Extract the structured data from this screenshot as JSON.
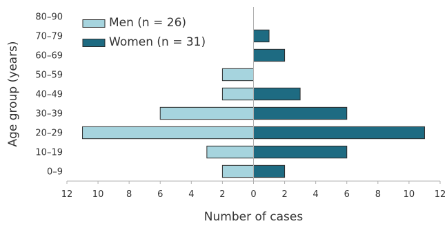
{
  "chart_data": {
    "type": "bar",
    "orientation": "horizontal-population-pyramid",
    "categories": [
      "0–9",
      "10–19",
      "20–29",
      "30–39",
      "40–49",
      "50–59",
      "60–69",
      "70–79",
      "80–90"
    ],
    "series": [
      {
        "name": "Men (n = 26)",
        "values": [
          2,
          3,
          11,
          6,
          2,
          2,
          0,
          0,
          0
        ],
        "color": "#a6d4de",
        "side": "left"
      },
      {
        "name": "Women (n = 31)",
        "values": [
          2,
          6,
          11,
          6,
          3,
          0,
          2,
          1,
          0
        ],
        "color": "#1e6b82",
        "side": "right"
      }
    ],
    "xlabel": "Number of cases",
    "ylabel": "Age group (years)",
    "xticks": [
      "12",
      "10",
      "8",
      "6",
      "4",
      "2",
      "0",
      "2",
      "4",
      "6",
      "8",
      "10",
      "12"
    ],
    "xlim": [
      -12,
      12
    ],
    "legend_position": "top-left",
    "grid": false
  }
}
